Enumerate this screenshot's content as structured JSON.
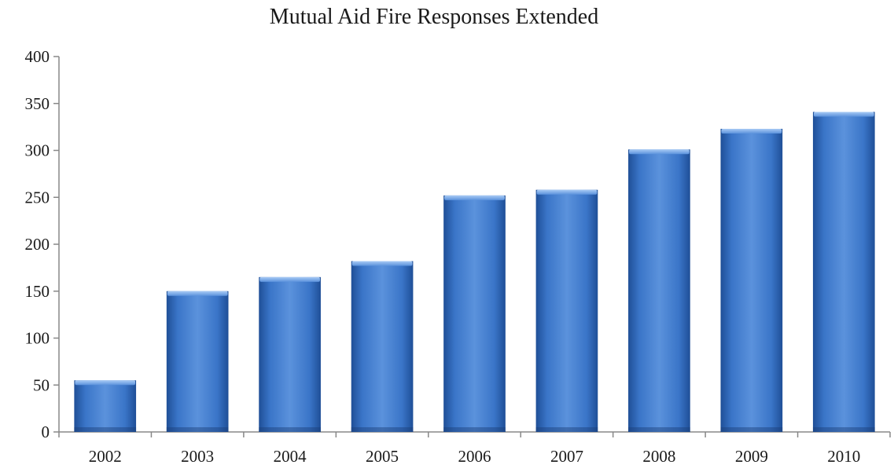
{
  "chart_data": {
    "type": "bar",
    "title": "Mutual Aid Fire Responses Extended",
    "xlabel": "",
    "ylabel": "",
    "categories": [
      "2002",
      "2003",
      "2004",
      "2005",
      "2006",
      "2007",
      "2008",
      "2009",
      "2010"
    ],
    "values": [
      55,
      150,
      165,
      182,
      252,
      258,
      301,
      323,
      341
    ],
    "ylim": [
      0,
      400
    ],
    "yticks": [
      0,
      50,
      100,
      150,
      200,
      250,
      300,
      350,
      400
    ],
    "grid": false,
    "legend": "none",
    "colors": {
      "bar_light": "#6a9fe0",
      "bar_mid": "#3a75c8",
      "bar_dark": "#1f4f97",
      "bar_top": "#8fbaf0",
      "axis": "#888888"
    }
  }
}
